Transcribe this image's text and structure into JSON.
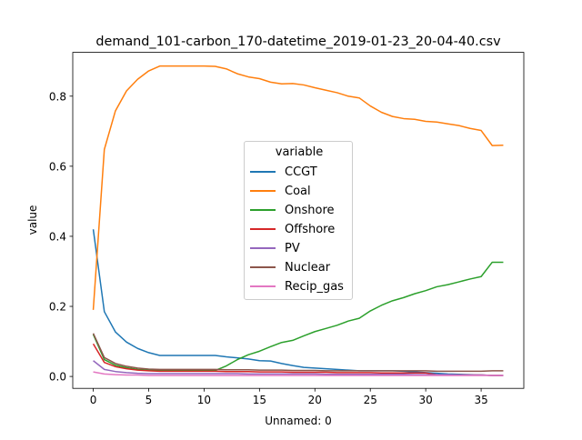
{
  "chart_data": {
    "type": "line",
    "title": "demand_101-carbon_170-datetime_2019-01-23_20-04-40.csv",
    "xlabel": "Unnamed: 0",
    "ylabel": "value",
    "xlim": [
      -1.85,
      38.85
    ],
    "ylim": [
      -0.034,
      0.925
    ],
    "xticks": [
      0,
      5,
      10,
      15,
      20,
      25,
      30,
      35
    ],
    "yticks": [
      0.0,
      0.2,
      0.4,
      0.6,
      0.8
    ],
    "ytick_labels": [
      "0.0",
      "0.2",
      "0.4",
      "0.6",
      "0.8"
    ],
    "legend": {
      "title": "variable",
      "placement": "center"
    },
    "grid": false,
    "x": [
      0,
      1,
      2,
      3,
      4,
      5,
      6,
      7,
      8,
      9,
      10,
      11,
      12,
      13,
      14,
      15,
      16,
      17,
      18,
      19,
      20,
      21,
      22,
      23,
      24,
      25,
      26,
      27,
      28,
      29,
      30,
      31,
      32,
      33,
      34,
      35,
      36,
      37
    ],
    "series": [
      {
        "name": "CCGT",
        "color": "#1f77b4",
        "values": [
          0.42,
          0.185,
          0.127,
          0.098,
          0.08,
          0.068,
          0.06,
          0.06,
          0.06,
          0.06,
          0.06,
          0.06,
          0.056,
          0.053,
          0.05,
          0.045,
          0.044,
          0.037,
          0.031,
          0.026,
          0.024,
          0.022,
          0.02,
          0.018,
          0.016,
          0.016,
          0.016,
          0.016,
          0.015,
          0.013,
          0.011,
          0.009,
          0.007,
          0.006,
          0.005,
          0.004,
          0.003,
          0.003
        ]
      },
      {
        "name": "Coal",
        "color": "#ff7f0e",
        "values": [
          0.19,
          0.648,
          0.758,
          0.815,
          0.848,
          0.872,
          0.886,
          0.886,
          0.886,
          0.886,
          0.886,
          0.885,
          0.878,
          0.864,
          0.855,
          0.85,
          0.84,
          0.835,
          0.836,
          0.832,
          0.824,
          0.817,
          0.81,
          0.8,
          0.795,
          0.772,
          0.754,
          0.742,
          0.736,
          0.734,
          0.728,
          0.726,
          0.721,
          0.716,
          0.708,
          0.702,
          0.659,
          0.66
        ]
      },
      {
        "name": "Onshore",
        "color": "#2ca02c",
        "values": [
          0.12,
          0.048,
          0.032,
          0.025,
          0.02,
          0.018,
          0.017,
          0.017,
          0.017,
          0.017,
          0.017,
          0.017,
          0.03,
          0.048,
          0.062,
          0.072,
          0.085,
          0.097,
          0.103,
          0.116,
          0.128,
          0.137,
          0.146,
          0.158,
          0.166,
          0.187,
          0.203,
          0.216,
          0.225,
          0.236,
          0.245,
          0.256,
          0.262,
          0.27,
          0.278,
          0.285,
          0.326,
          0.326
        ]
      },
      {
        "name": "Offshore",
        "color": "#d62728",
        "values": [
          0.093,
          0.04,
          0.028,
          0.022,
          0.018,
          0.016,
          0.015,
          0.015,
          0.015,
          0.015,
          0.015,
          0.015,
          0.014,
          0.014,
          0.014,
          0.013,
          0.013,
          0.013,
          0.012,
          0.012,
          0.012,
          0.012,
          0.011,
          0.011,
          0.011,
          0.011,
          0.01,
          0.01,
          0.01,
          0.01,
          0.01,
          0.005,
          0.004,
          0.004,
          0.004,
          0.004,
          0.003,
          0.003
        ]
      },
      {
        "name": "PV",
        "color": "#9467bd",
        "values": [
          0.045,
          0.02,
          0.014,
          0.011,
          0.009,
          0.008,
          0.008,
          0.008,
          0.008,
          0.008,
          0.008,
          0.008,
          0.008,
          0.008,
          0.007,
          0.007,
          0.007,
          0.007,
          0.007,
          0.007,
          0.007,
          0.006,
          0.006,
          0.006,
          0.006,
          0.006,
          0.006,
          0.006,
          0.006,
          0.005,
          0.005,
          0.005,
          0.005,
          0.004,
          0.004,
          0.004,
          0.003,
          0.003
        ]
      },
      {
        "name": "Nuclear",
        "color": "#8c564b",
        "values": [
          0.123,
          0.054,
          0.037,
          0.029,
          0.024,
          0.021,
          0.02,
          0.02,
          0.02,
          0.02,
          0.02,
          0.02,
          0.019,
          0.019,
          0.019,
          0.018,
          0.018,
          0.018,
          0.017,
          0.017,
          0.017,
          0.016,
          0.016,
          0.016,
          0.016,
          0.016,
          0.016,
          0.016,
          0.016,
          0.016,
          0.016,
          0.015,
          0.015,
          0.015,
          0.015,
          0.015,
          0.016,
          0.016
        ]
      },
      {
        "name": "Recip_gas",
        "color": "#e377c2",
        "values": [
          0.013,
          0.007,
          0.005,
          0.004,
          0.004,
          0.003,
          0.003,
          0.003,
          0.003,
          0.003,
          0.003,
          0.003,
          0.003,
          0.003,
          0.003,
          0.003,
          0.003,
          0.003,
          0.003,
          0.003,
          0.003,
          0.003,
          0.003,
          0.003,
          0.003,
          0.003,
          0.003,
          0.003,
          0.003,
          0.003,
          0.003,
          0.003,
          0.003,
          0.003,
          0.003,
          0.003,
          0.003,
          0.003
        ]
      }
    ]
  }
}
